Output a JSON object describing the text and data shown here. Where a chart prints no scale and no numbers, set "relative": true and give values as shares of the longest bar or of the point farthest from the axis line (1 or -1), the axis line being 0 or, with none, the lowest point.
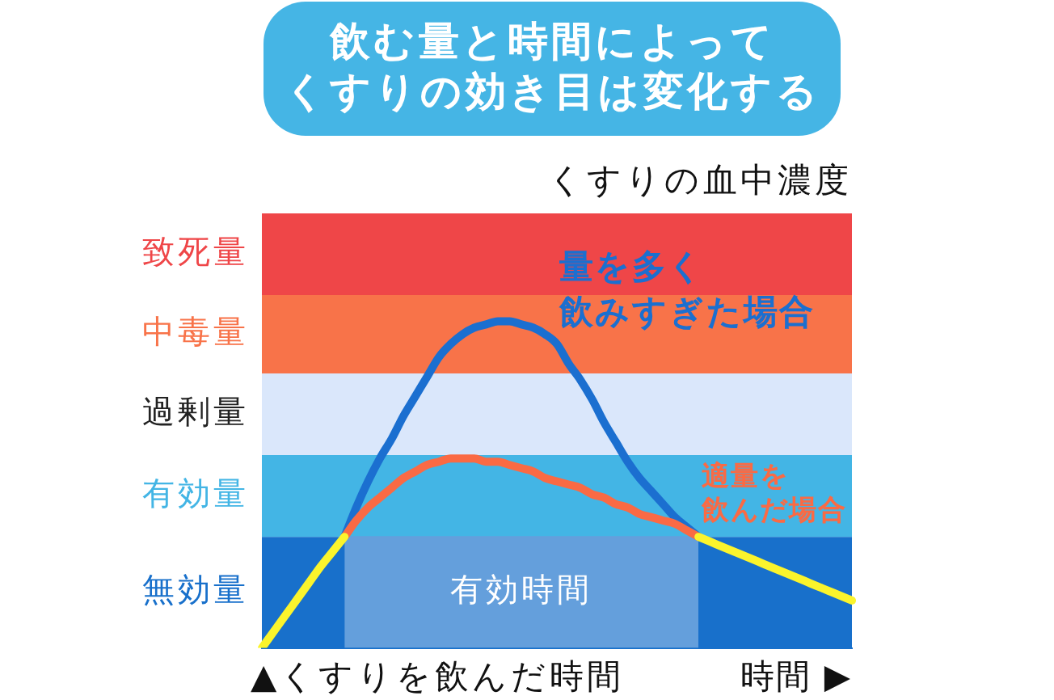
{
  "chart_data": {
    "type": "line",
    "title": "飲む量と時間によってくすりの効き目は変化する",
    "ylabel": "くすりの血中濃度",
    "xlabel": "時間 ▶",
    "relative": true,
    "marker": "none",
    "categories": [
      null,
      null,
      null,
      null,
      null,
      null,
      null,
      null,
      null,
      null,
      null,
      null,
      null,
      null,
      null,
      null,
      null,
      null,
      null,
      null,
      null,
      null,
      null,
      null,
      null,
      null,
      null,
      null,
      null,
      null,
      null,
      null,
      null,
      null,
      null,
      null,
      null,
      null,
      null,
      null,
      null,
      null,
      null,
      null,
      null,
      null,
      null,
      null,
      null,
      null,
      null
    ],
    "series": [
      {
        "type": "area",
        "name": "有効時間",
        "color": "#649fdc",
        "values": [
          null,
          null,
          null,
          null,
          null,
          null,
          null,
          0.34,
          0.34,
          0.34,
          0.34,
          0.34,
          0.34,
          0.34,
          0.34,
          0.34,
          0.34,
          0.34,
          0.34,
          0.34,
          0.34,
          0.34,
          0.34,
          0.34,
          0.34,
          0.34,
          0.34,
          0.34,
          0.34,
          0.34,
          0.34,
          0.34,
          0.34,
          0.34,
          0.34,
          0.34,
          0.34,
          0.34,
          null,
          null,
          null,
          null,
          null,
          null,
          null,
          null,
          null,
          null,
          null,
          null,
          null
        ]
      },
      {
        "name": "量を多く飲みすぎた場合",
        "color": "#1b6fd0",
        "values": [
          null,
          null,
          null,
          null,
          null,
          null,
          null,
          0.34,
          0.43,
          0.51,
          0.58,
          0.64,
          0.71,
          0.77,
          0.83,
          0.89,
          0.93,
          0.96,
          0.98,
          0.99,
          1,
          1,
          0.99,
          0.98,
          0.96,
          0.93,
          0.87,
          0.82,
          0.76,
          0.69,
          0.63,
          0.57,
          0.52,
          0.48,
          0.44,
          0.4,
          0.37,
          0.34,
          null,
          null,
          null,
          null,
          null,
          null,
          null,
          null,
          null,
          null,
          null,
          null,
          null
        ]
      },
      {
        "name": "適量を飲んだ場合",
        "color": "#fa6a44",
        "values": [
          null,
          null,
          null,
          null,
          null,
          null,
          null,
          0.34,
          0.39,
          0.43,
          0.46,
          0.49,
          0.52,
          0.54,
          0.56,
          0.57,
          0.58,
          0.58,
          0.58,
          0.57,
          0.57,
          0.56,
          0.55,
          0.54,
          0.52,
          0.51,
          0.5,
          0.49,
          0.47,
          0.46,
          0.44,
          0.43,
          0.41,
          0.4,
          0.39,
          0.38,
          0.36,
          0.34,
          null,
          null,
          null,
          null,
          null,
          null,
          null,
          null,
          null,
          null,
          null,
          null,
          null
        ]
      },
      {
        "color": "#fbf42c",
        "values": [
          0,
          0.05,
          0.1,
          0.15,
          0.2,
          0.25,
          0.295,
          0.34,
          null,
          null,
          null,
          null,
          null,
          null,
          null,
          null,
          null,
          null,
          null,
          null,
          null,
          null,
          null,
          null,
          null,
          null,
          null,
          null,
          null,
          null,
          null,
          null,
          null,
          null,
          null,
          null,
          null,
          0.34,
          0.325,
          0.31,
          0.295,
          0.28,
          0.265,
          0.25,
          0.235,
          0.22,
          0.205,
          0.19,
          0.175,
          0.16,
          0.145
        ]
      }
    ],
    "bands": [
      {
        "axis": "y",
        "from": 1.08,
        "to": 1.33,
        "label": "致死量",
        "color": "#ef4648"
      },
      {
        "axis": "y",
        "from": 0.84,
        "to": 1.08,
        "label": "中毒量",
        "color": "#f87349"
      },
      {
        "axis": "y",
        "from": 0.59,
        "to": 0.84,
        "label": "過剰量",
        "color": "#dae7fb"
      },
      {
        "axis": "y",
        "from": 0.34,
        "to": 0.59,
        "label": "有効量",
        "color": "#43b5e5"
      },
      {
        "axis": "y",
        "from": 0,
        "to": 0.34,
        "label": "無効量",
        "color": "#1870cb"
      }
    ],
    "annotations": [
      "▲くすりを飲んだ時間"
    ]
  }
}
